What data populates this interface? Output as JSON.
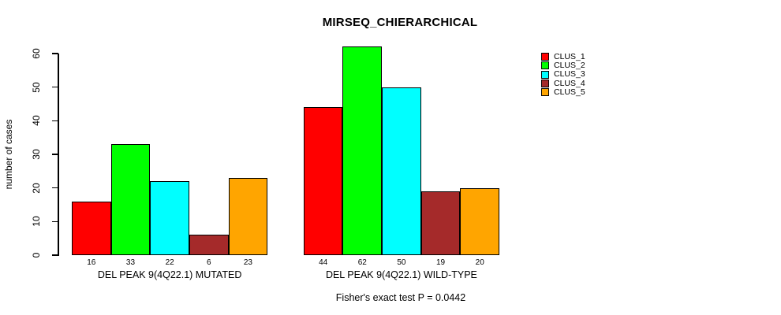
{
  "title": "MIRSEQ_CHIERARCHICAL",
  "footnote": "Fisher's exact test P = 0.0442",
  "chart_data": {
    "type": "bar",
    "title": "MIRSEQ_CHIERARCHICAL",
    "xlabel": "",
    "ylabel": "number of cases",
    "categories": [
      "DEL PEAK 9(4Q22.1) MUTATED",
      "DEL PEAK 9(4Q22.1) WILD-TYPE"
    ],
    "series": [
      {
        "name": "CLUS_1",
        "color": "#ff0000",
        "values": [
          16,
          44
        ]
      },
      {
        "name": "CLUS_2",
        "color": "#00ff00",
        "values": [
          33,
          62
        ]
      },
      {
        "name": "CLUS_3",
        "color": "#00ffff",
        "values": [
          22,
          50
        ]
      },
      {
        "name": "CLUS_4",
        "color": "#a52a2a",
        "values": [
          6,
          19
        ]
      },
      {
        "name": "CLUS_5",
        "color": "#ffa500",
        "values": [
          23,
          20
        ]
      }
    ],
    "bar_value_labels": {
      "DEL PEAK 9(4Q22.1) MUTATED": [
        16,
        33,
        22,
        6,
        23
      ],
      "DEL PEAK 9(4Q22.1) WILD-TYPE": [
        44,
        62,
        50,
        19,
        20
      ]
    },
    "yticks": [
      0,
      10,
      20,
      30,
      40,
      50,
      60
    ],
    "ylim": [
      0,
      60
    ],
    "grid": false,
    "legend_position": "top-right",
    "annotation": "Fisher's exact test P = 0.0442",
    "bar_outline_color": "#000000",
    "background_color": "#ffffff"
  }
}
